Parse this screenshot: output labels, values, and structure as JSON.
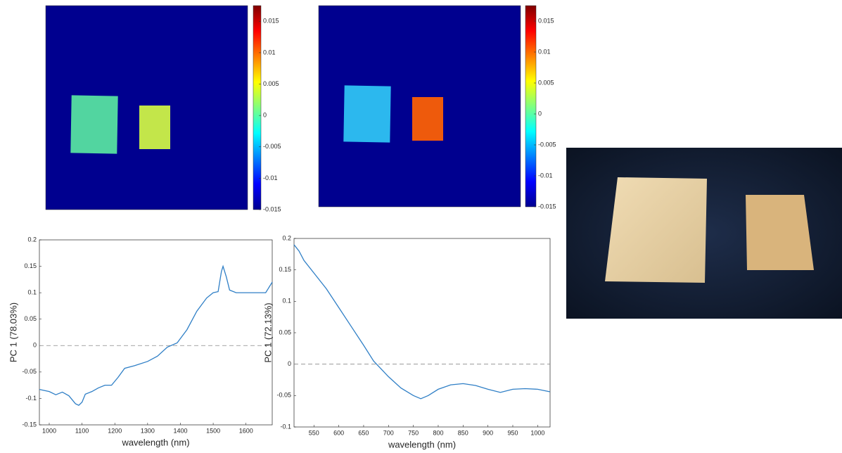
{
  "chart_data": [
    {
      "type": "heatmap",
      "clim": [
        -0.015,
        0.0175
      ],
      "cticks": [
        -0.015,
        -0.01,
        -0.005,
        0,
        0.005,
        0.01,
        0.015
      ]
    },
    {
      "type": "heatmap",
      "clim": [
        -0.015,
        0.0175
      ],
      "cticks": [
        -0.015,
        -0.01,
        -0.005,
        0,
        0.005,
        0.01,
        0.015
      ]
    },
    {
      "type": "line",
      "x_label": "wavelength (nm)",
      "y_label": "PC 1 (78.03%)",
      "color": "#2f7fc6",
      "reference_line": 0,
      "x": [
        970,
        1000,
        1020,
        1040,
        1060,
        1080,
        1090,
        1100,
        1110,
        1130,
        1150,
        1170,
        1190,
        1210,
        1230,
        1260,
        1300,
        1330,
        1360,
        1390,
        1420,
        1450,
        1480,
        1500,
        1515,
        1525,
        1530,
        1540,
        1550,
        1570,
        1600,
        1640,
        1660,
        1680
      ],
      "values": [
        -0.083,
        -0.087,
        -0.093,
        -0.088,
        -0.095,
        -0.11,
        -0.113,
        -0.107,
        -0.092,
        -0.087,
        -0.08,
        -0.075,
        -0.075,
        -0.06,
        -0.043,
        -0.038,
        -0.03,
        -0.02,
        -0.003,
        0.005,
        0.03,
        0.065,
        0.09,
        0.1,
        0.102,
        0.14,
        0.15,
        0.13,
        0.105,
        0.1,
        0.1,
        0.1,
        0.1,
        0.12
      ],
      "xlim": [
        970,
        1680
      ],
      "xticks": [
        1000,
        1100,
        1200,
        1300,
        1400,
        1500,
        1600
      ],
      "ylim": [
        -0.15,
        0.2
      ],
      "yticks": [
        -0.15,
        -0.1,
        -0.05,
        0,
        0.05,
        0.1,
        0.15,
        0.2
      ]
    },
    {
      "type": "line",
      "x_label": "wavelength (nm)",
      "y_label": "PC 1 (72.13%)",
      "color": "#2f7fc6",
      "reference_line": 0,
      "x": [
        510,
        520,
        530,
        550,
        575,
        600,
        625,
        650,
        670,
        700,
        725,
        750,
        765,
        780,
        800,
        825,
        850,
        875,
        900,
        925,
        950,
        975,
        1000,
        1025
      ],
      "values": [
        0.19,
        0.18,
        0.165,
        0.145,
        0.12,
        0.09,
        0.06,
        0.03,
        0.005,
        -0.02,
        -0.038,
        -0.05,
        -0.055,
        -0.05,
        -0.04,
        -0.033,
        -0.031,
        -0.034,
        -0.04,
        -0.045,
        -0.04,
        -0.039,
        -0.04,
        -0.044
      ],
      "xlim": [
        510,
        1025
      ],
      "xticks": [
        550,
        600,
        650,
        700,
        750,
        800,
        850,
        900,
        950,
        1000
      ],
      "ylim": [
        -0.1,
        0.2
      ],
      "yticks": [
        -0.1,
        -0.05,
        0,
        0.05,
        0.1,
        0.15,
        0.2
      ]
    }
  ]
}
